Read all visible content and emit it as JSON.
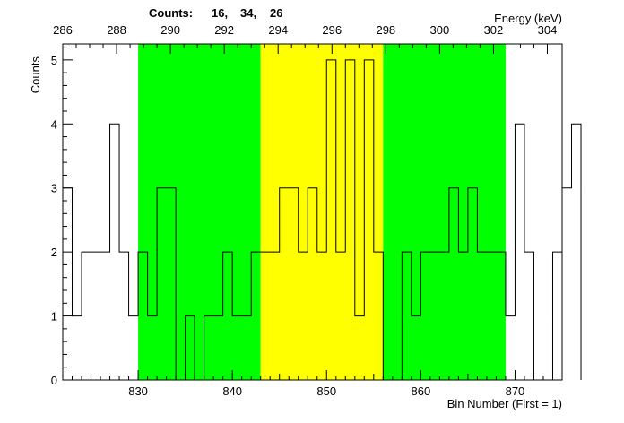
{
  "chart_data": {
    "type": "histogram",
    "counts_label": "Counts:",
    "counts_values": [
      "16,",
      "34,",
      "26"
    ],
    "ylabel": "Counts",
    "xlabel": "Bin Number (First = 1)",
    "x2label": "Energy (keV)",
    "xlim": [
      822,
      875
    ],
    "ylim": [
      0,
      5.25
    ],
    "x_ticks": [
      830,
      840,
      850,
      860,
      870
    ],
    "y_ticks": [
      0,
      1,
      2,
      3,
      4,
      5
    ],
    "energy_ticks": [
      286,
      288,
      290,
      292,
      294,
      296,
      298,
      300,
      302,
      304
    ],
    "energy_axis": {
      "keV_at_822": 286.0,
      "keV_per_bin": 0.35
    },
    "regions": [
      {
        "x0": 830,
        "x1": 843,
        "color": "#00ff00"
      },
      {
        "x0": 843,
        "x1": 856,
        "color": "#ffff00"
      },
      {
        "x0": 856,
        "x1": 869,
        "color": "#00ff00"
      }
    ],
    "line_color": "#000000",
    "bins": {
      "start": 822,
      "width": 1,
      "values": [
        3,
        1,
        2,
        2,
        2,
        4,
        2,
        1,
        2,
        1,
        3,
        3,
        0,
        1,
        0,
        1,
        1,
        2,
        1,
        1,
        2,
        2,
        2,
        3,
        3,
        2,
        3,
        2,
        5,
        2,
        5,
        1,
        5,
        2,
        0,
        0,
        2,
        1,
        2,
        2,
        2,
        3,
        2,
        3,
        2,
        2,
        2,
        1,
        4,
        2,
        0,
        0,
        2,
        3,
        4
      ]
    }
  }
}
